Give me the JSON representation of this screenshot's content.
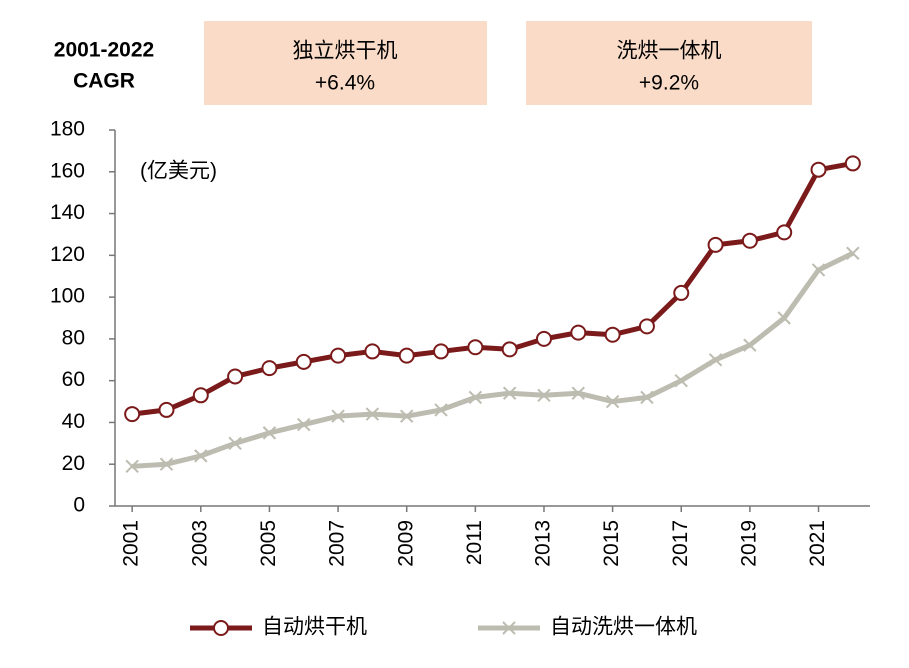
{
  "chart_data": {
    "type": "line",
    "cagr_title": [
      "2001-2022",
      "CAGR"
    ],
    "boxes": [
      {
        "label": "独立烘干机",
        "value": "+6.4%"
      },
      {
        "label": "洗烘一体机",
        "value": "+9.2%"
      }
    ],
    "unit_label": "(亿美元)",
    "x": [
      2001,
      2002,
      2003,
      2004,
      2005,
      2006,
      2007,
      2008,
      2009,
      2010,
      2011,
      2012,
      2013,
      2014,
      2015,
      2016,
      2017,
      2018,
      2019,
      2020,
      2021,
      2022
    ],
    "xlim": [
      2000.5,
      2022.5
    ],
    "xticks": [
      2001,
      2003,
      2005,
      2007,
      2009,
      2011,
      2013,
      2015,
      2017,
      2019,
      2021
    ],
    "ylim": [
      0,
      180
    ],
    "yticks": [
      0,
      20,
      40,
      60,
      80,
      100,
      120,
      140,
      160,
      180
    ],
    "series": [
      {
        "name": "自动烘干机",
        "color": "#7b1a1a",
        "marker": "circle",
        "values": [
          44,
          46,
          53,
          62,
          66,
          69,
          72,
          74,
          72,
          74,
          76,
          75,
          80,
          83,
          82,
          86,
          102,
          125,
          127,
          131,
          161,
          164
        ]
      },
      {
        "name": "自动洗烘一体机",
        "color": "#bdbcb0",
        "marker": "cross",
        "values": [
          19,
          20,
          24,
          30,
          35,
          39,
          43,
          44,
          43,
          46,
          52,
          54,
          53,
          54,
          50,
          52,
          60,
          70,
          77,
          90,
          113,
          121
        ]
      }
    ]
  }
}
